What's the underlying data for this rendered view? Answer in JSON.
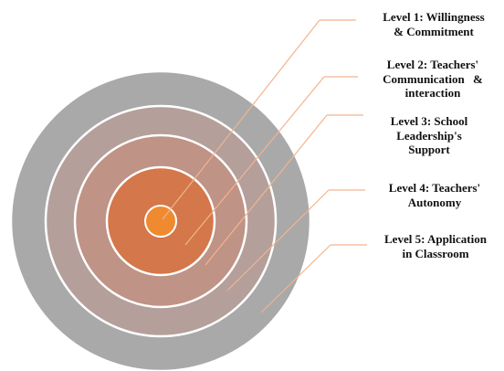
{
  "levels": [
    {
      "lines": [
        "Level 1: Willingness",
        "& Commitment"
      ],
      "color": "#f08a30",
      "leader": "#f2b48f"
    },
    {
      "lines": [
        "Level 2: Teachers'",
        "Communication &",
        "interaction"
      ],
      "color": "#d4774a",
      "leader": "#f2b48f"
    },
    {
      "lines": [
        "Level 3: School",
        "Leadership's",
        "Support"
      ],
      "color": "#bf9386",
      "leader": "#f2b48f"
    },
    {
      "lines": [
        "Level 4: Teachers'",
        "Autonomy"
      ],
      "color": "#b49f9b",
      "leader": "#f2b48f"
    },
    {
      "lines": [
        "Level 5: Application",
        "in Classroom"
      ],
      "color": "#a9a9a9",
      "leader": "#f2b48f"
    }
  ]
}
